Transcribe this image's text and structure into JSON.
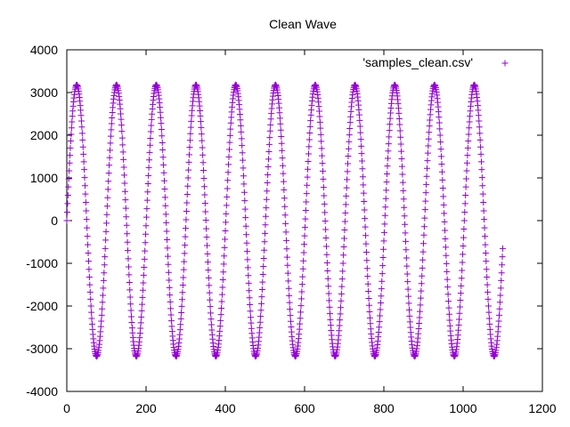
{
  "chart_data": {
    "type": "scatter",
    "title": "Clean Wave",
    "xlabel": "",
    "ylabel": "",
    "xlim": [
      0,
      1200
    ],
    "ylim": [
      -4000,
      4000
    ],
    "x_ticks": [
      0,
      200,
      400,
      600,
      800,
      1000,
      1200
    ],
    "y_ticks": [
      -4000,
      -3000,
      -2000,
      -1000,
      0,
      1000,
      2000,
      3000,
      4000
    ],
    "x_tick_labels": [
      "0",
      "200",
      "400",
      "600",
      "800",
      "1000",
      "1200"
    ],
    "y_tick_labels": [
      "-4000",
      "-3000",
      "-2000",
      "-1000",
      "0",
      "1000",
      "2000",
      "3000",
      "4000"
    ],
    "grid": false,
    "legend_position": "top-right",
    "series": [
      {
        "name": "'samples_clean.csv'",
        "marker": "plus",
        "color": "#9400d3",
        "x_range": [
          0,
          1100
        ],
        "x_step": 1,
        "amplitude": 3180,
        "period": 100.3,
        "phase_offset": 0.0
      }
    ]
  }
}
